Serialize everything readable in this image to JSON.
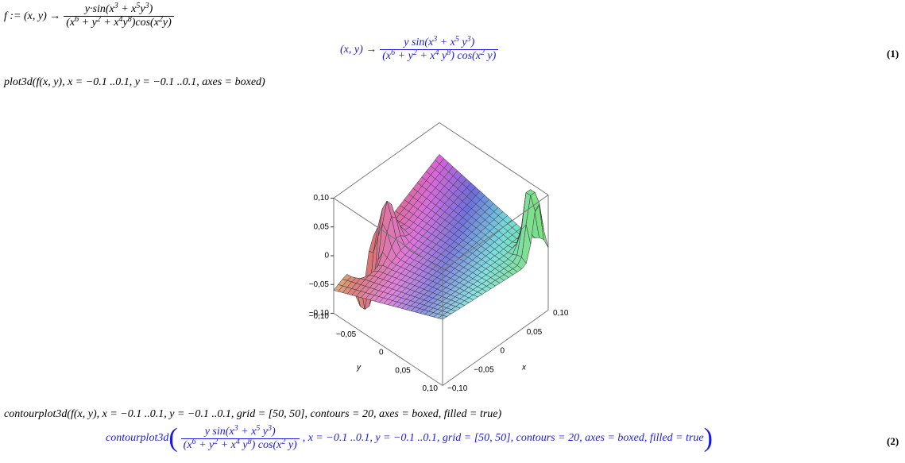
{
  "input1": {
    "lhs": "f :=",
    "args": "(x, y) →",
    "numerator": [
      "y·sin(x",
      "3",
      " + x",
      "5",
      "y",
      "3",
      ")"
    ],
    "denominator": [
      "(x",
      "6",
      " + y",
      "2",
      " + x",
      "4",
      "y",
      "8",
      ")cos(x",
      "2",
      "y)"
    ]
  },
  "output1": {
    "args": "(x, y) →",
    "numerator": [
      "y sin(x",
      "3",
      " + x",
      "5",
      " y",
      "3",
      ")"
    ],
    "denominator": [
      "(x",
      "6",
      " + y",
      "2",
      " + x",
      "4",
      " y",
      "8",
      ") cos(x",
      "2",
      " y)"
    ],
    "label": "(1)"
  },
  "input2": "plot3d(f(x, y), x = −0.1 ..0.1, y = −0.1 ..0.1, axes = boxed)",
  "plot": {
    "z_ticks": [
      "0,10",
      "0,05",
      "0",
      "−0,05",
      "−0,10"
    ],
    "y_ticks": [
      "−0,10",
      "−0,05",
      "0",
      "0,05",
      "0,10"
    ],
    "x_ticks": [
      "−0,10",
      "−0,05",
      "0",
      "0,05",
      "0,10"
    ],
    "y_label": "y",
    "x_label": "x"
  },
  "input3": "contourplot3d(f(x, y), x = −0.1 ..0.1, y = −0.1 ..0.1, grid = [50, 50], contours = 20, axes = boxed, filled = true)",
  "output2": {
    "func": "contourplot3d",
    "numerator": [
      "y sin(x",
      "3",
      " + x",
      "5",
      " y",
      "3",
      ")"
    ],
    "denominator": [
      "(x",
      "6",
      " + y",
      "2",
      " + x",
      "4",
      " y",
      "8",
      ") cos(x",
      "2",
      " y)"
    ],
    "rest": ", x = −0.1 ..0.1, y = −0.1 ..0.1, grid = [50, 50], contours = 20, axes = boxed, filled = true",
    "label": "(2)"
  }
}
